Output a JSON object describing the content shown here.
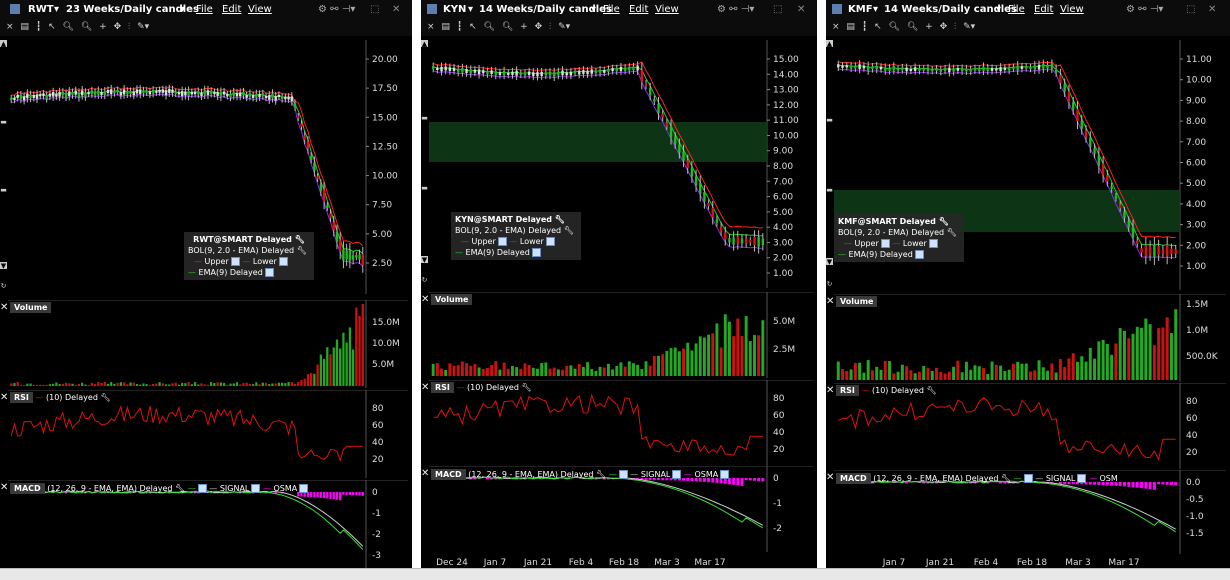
{
  "panels": [
    {
      "symbol": "RWT",
      "period": "23 Weeks/Daily candles",
      "menus": [
        "File",
        "Edit",
        "View"
      ],
      "legend_title": "RWT@SMART Delayed",
      "bol_label": "BOL(9, 2.0 - EMA) Delayed",
      "upper_label": "Upper",
      "lower_label": "Lower",
      "ema_label": "EMA(9) Delayed",
      "price_ticks": [
        "20.00",
        "17.50",
        "15.00",
        "12.50",
        "10.00",
        "7.50",
        "5.00",
        "2.50"
      ],
      "volume_label": "Volume",
      "volume_ticks": [
        "15.0M",
        "10.0M",
        "5.0M"
      ],
      "rsi_label": "RSI",
      "rsi_setting": "(10) Delayed",
      "rsi_ticks": [
        "80",
        "60",
        "40",
        "20"
      ],
      "macd_label": "MACD",
      "macd_setting": "(12, 26, 9 - EMA, EMA) Delayed",
      "signal_label": "SIGNAL",
      "osma_label": "OSMA",
      "macd_ticks": [
        "0",
        "-1",
        "-2",
        "-3"
      ],
      "date_ticks": []
    },
    {
      "symbol": "KYN",
      "period": "14 Weeks/Daily candles",
      "menus": [
        "File",
        "Edit",
        "View"
      ],
      "legend_title": "KYN@SMART Delayed",
      "bol_label": "BOL(9, 2.0 - EMA) Delayed",
      "upper_label": "Upper",
      "lower_label": "Lower",
      "ema_label": "EMA(9) Delayed",
      "price_ticks": [
        "15.00",
        "14.00",
        "13.00",
        "12.00",
        "11.00",
        "10.00",
        "9.00",
        "8.00",
        "7.00",
        "6.00",
        "5.00",
        "4.00",
        "3.00",
        "2.00",
        "1.00"
      ],
      "volume_label": "Volume",
      "volume_ticks": [
        "5.0M",
        "2.5M"
      ],
      "rsi_label": "RSI",
      "rsi_setting": "(10) Delayed",
      "rsi_ticks": [
        "80",
        "60",
        "40",
        "20"
      ],
      "macd_label": "MACD",
      "macd_setting": "(12, 26, 9 - EMA, EMA) Delayed",
      "signal_label": "SIGNAL",
      "osma_label": "OSMA",
      "macd_ticks": [
        "0",
        "-1",
        "-2"
      ],
      "date_ticks": [
        "Dec 24",
        "Jan 7",
        "Jan 21",
        "Feb 4",
        "Feb 18",
        "Mar 3",
        "Mar 17"
      ]
    },
    {
      "symbol": "KMF",
      "period": "14 Weeks/Daily candles",
      "menus": [
        "File",
        "Edit",
        "View"
      ],
      "legend_title": "KMF@SMART Delayed",
      "bol_label": "BOL(9, 2.0 - EMA) Delayed",
      "upper_label": "Upper",
      "lower_label": "Lower",
      "ema_label": "EMA(9) Delayed",
      "price_ticks": [
        "11.00",
        "10.00",
        "9.00",
        "8.00",
        "7.00",
        "6.00",
        "5.00",
        "4.00",
        "3.00",
        "2.00",
        "1.00"
      ],
      "volume_label": "Volume",
      "volume_ticks": [
        "1.5M",
        "1.0M",
        "500.0K"
      ],
      "rsi_label": "RSI",
      "rsi_setting": "(10) Delayed",
      "rsi_ticks": [
        "80",
        "60",
        "40",
        "20"
      ],
      "macd_label": "MACD",
      "macd_setting": "(12, 26, 9 - EMA, EMA) Delayed",
      "signal_label": "SIGNAL",
      "osma_label": "OSM",
      "macd_ticks": [
        "0.0",
        "-0.5",
        "-1.0",
        "-1.5"
      ],
      "date_ticks": [
        "Jan 7",
        "Jan 21",
        "Feb 4",
        "Feb 18",
        "Mar 3",
        "Mar 17"
      ]
    }
  ],
  "colors": {
    "upper": "#ff2020",
    "lower": "#8a2be2",
    "ema": "#22cc22",
    "rsi": "#dd1111",
    "macd": "#33dd33",
    "signal": "#cccccc",
    "osma": "#ff00ff",
    "candle_up": "#22bb22",
    "candle_down": "#dd1111",
    "volume_up": "#22aa22",
    "volume_down": "#cc1111"
  }
}
